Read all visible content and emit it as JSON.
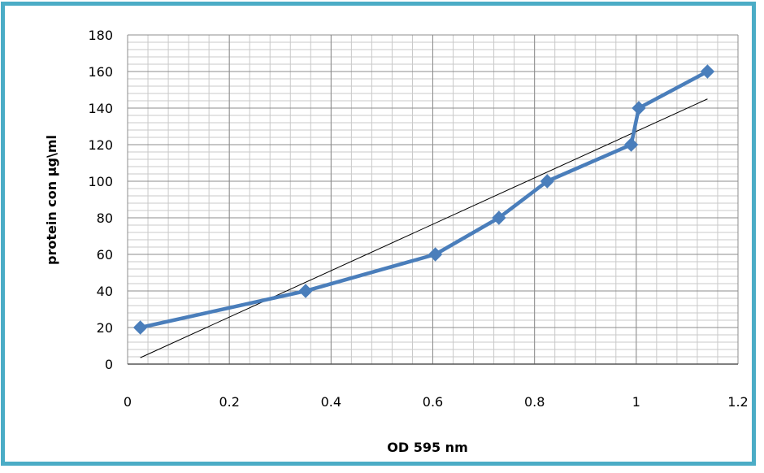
{
  "chart_data": {
    "type": "line",
    "xlabel": "OD 595 nm",
    "ylabel": "protein con µg\\ml",
    "xlim": [
      0,
      1.2
    ],
    "ylim": [
      0,
      180
    ],
    "x_ticks": [
      "0",
      "0.2",
      "0.4",
      "0.6",
      "0.8",
      "1",
      "1.2"
    ],
    "y_ticks": [
      "0",
      "20",
      "40",
      "60",
      "80",
      "100",
      "120",
      "140",
      "160",
      "180"
    ],
    "grid": true,
    "legend": "none",
    "series": [
      {
        "type": "line-markers",
        "color": "#4a7ebb",
        "points": [
          {
            "x": 0.025,
            "y": 20
          },
          {
            "x": 0.35,
            "y": 40
          },
          {
            "x": 0.605,
            "y": 60
          },
          {
            "x": 0.73,
            "y": 80
          },
          {
            "x": 0.825,
            "y": 100
          },
          {
            "x": 0.99,
            "y": 120
          },
          {
            "x": 1.005,
            "y": 140
          },
          {
            "x": 1.14,
            "y": 160
          }
        ]
      },
      {
        "type": "trendline",
        "color": "#000000",
        "points": [
          {
            "x": 0.025,
            "y": 3.5
          },
          {
            "x": 1.14,
            "y": 145
          }
        ]
      }
    ]
  }
}
